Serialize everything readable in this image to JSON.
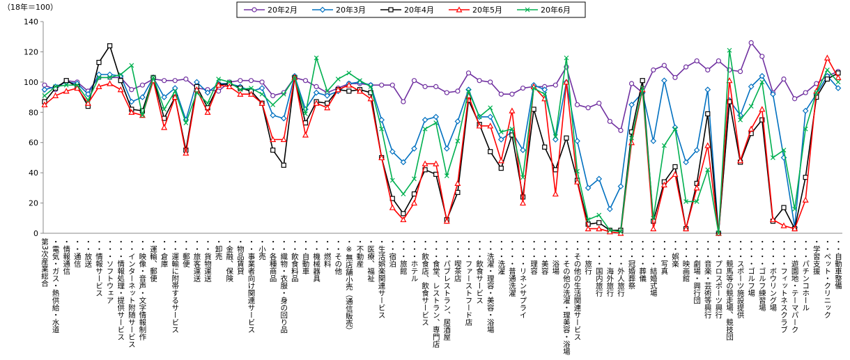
{
  "chart_data": {
    "type": "line",
    "y_label": "（18年＝100）",
    "categories": [
      "第3次産業総合",
      "・電気・ガス・熱供給・水道",
      "・情報通信",
      "・・通信",
      "・・放送",
      "・・情報サービス",
      "・・・ソフトウェア",
      "・・・情報処理・提供サービス",
      "・・インターネット附随サービス",
      "・・映像・音声・文字情報制作",
      "・運輸、郵便",
      "・・倉庫",
      "・・運輸に附帯するサービス",
      "・・郵便",
      "・・旅客運送",
      "・・貨物運送",
      "・卸売",
      "・金融、保険",
      "・物品賃貸",
      "・・事業者向け関連サービス",
      "・小売",
      "・・各種商品",
      "・・織物・衣服・身の回り品",
      "・・飲食料品",
      "・・自動車",
      "・・機械器具",
      "・・燃料",
      "・・その他",
      "・※無店舗小売（通信販売）",
      "・不動産",
      "・医療、福祉",
      "・生活娯楽関連サービス",
      "・・宿泊",
      "・・・旅館",
      "・・・ホテル",
      "・・飲食店、飲食サービス",
      "・・・食堂、レストラン、専門店",
      "・・・パブレストラン、居酒屋",
      "・・・喫茶店",
      "・・・ファーストフード店",
      "・・・飲食サービス",
      "・・洗濯・理容・美容・浴場",
      "・・・洗濯",
      "・・・・普通洗濯",
      "・・・・リネンサプライ",
      "・・・理容",
      "・・・美容",
      "・・・浴場",
      "・・・その他の洗濯・理美容・浴場",
      "・・その他の生活関連サービス",
      "・・・旅行",
      "・・・・国内旅行",
      "・・・・海外旅行",
      "・・・・外人旅行",
      "・・・冠婚葬祭",
      "・・・・葬儀",
      "・・・・結婚式場",
      "・・・写真",
      "・・娯楽",
      "・・・映画館",
      "・・・劇場・興行団",
      "・・・音楽・芸術等興行",
      "・・・プロスポーツ興行",
      "・・・競馬等の競走場、競技団",
      "・・・スポーツ施設提供",
      "・・・・ゴルフ場",
      "・・・・ゴルフ練習場",
      "・・・・ボウリング場",
      "・・・・フィットネスクラブ",
      "・・・遊園地・テーマパーク",
      "・・・パチンコホール",
      "・学習支援",
      "・・ペット・クリニック",
      "・・自動車整備"
    ],
    "series": [
      {
        "name": "20年2月",
        "color": "#7030a0",
        "marker": "circle",
        "values": [
          98,
          95,
          101,
          100,
          94,
          103,
          103,
          103,
          95,
          98,
          102,
          101,
          101,
          102,
          96,
          95,
          94,
          100,
          101,
          101,
          100,
          91,
          93,
          103,
          101,
          97,
          93,
          96,
          99,
          99,
          98,
          98,
          98,
          87,
          101,
          97,
          97,
          93,
          94,
          106,
          101,
          100,
          92,
          92,
          96,
          97,
          97,
          98,
          110,
          85,
          83,
          86,
          74,
          68,
          99,
          93,
          108,
          111,
          103,
          110,
          114,
          108,
          114,
          108,
          107,
          126,
          117,
          93,
          102,
          89,
          93,
          99,
          104,
          107
        ]
      },
      {
        "name": "20年3月",
        "color": "#0070c0",
        "marker": "diamond",
        "values": [
          95,
          97,
          100,
          99,
          92,
          105,
          105,
          104,
          87,
          90,
          103,
          90,
          96,
          75,
          100,
          93,
          99,
          99,
          97,
          94,
          96,
          78,
          76,
          104,
          82,
          93,
          91,
          94,
          99,
          100,
          98,
          75,
          54,
          47,
          56,
          75,
          77,
          56,
          74,
          95,
          77,
          77,
          62,
          67,
          55,
          98,
          95,
          62,
          100,
          61,
          30,
          36,
          16,
          31,
          85,
          93,
          61,
          101,
          70,
          47,
          55,
          95,
          0,
          88,
          78,
          97,
          104,
          92,
          50,
          4,
          81,
          92,
          104,
          96
        ]
      },
      {
        "name": "20年4月",
        "color": "#000000",
        "marker": "square",
        "values": [
          87,
          96,
          101,
          97,
          84,
          113,
          124,
          101,
          82,
          81,
          103,
          76,
          90,
          55,
          97,
          83,
          98,
          99,
          96,
          94,
          86,
          55,
          45,
          103,
          73,
          87,
          86,
          95,
          94,
          95,
          93,
          50,
          23,
          13,
          26,
          42,
          39,
          9,
          27,
          88,
          72,
          54,
          43,
          65,
          24,
          82,
          57,
          42,
          63,
          35,
          6,
          7,
          2,
          2,
          67,
          101,
          8,
          34,
          44,
          3,
          33,
          79,
          0,
          87,
          47,
          66,
          75,
          8,
          17,
          3,
          37,
          90,
          102,
          106
        ]
      },
      {
        "name": "20年5月",
        "color": "#ff0000",
        "marker": "triangle",
        "values": [
          85,
          91,
          94,
          96,
          86,
          97,
          99,
          95,
          80,
          78,
          101,
          70,
          90,
          53,
          95,
          80,
          98,
          97,
          92,
          92,
          86,
          62,
          62,
          103,
          65,
          86,
          83,
          95,
          98,
          94,
          89,
          50,
          17,
          9,
          20,
          46,
          46,
          8,
          33,
          91,
          71,
          71,
          48,
          81,
          20,
          97,
          89,
          26,
          100,
          34,
          3,
          3,
          1,
          0,
          60,
          95,
          3,
          32,
          39,
          3,
          30,
          58,
          0,
          101,
          48,
          69,
          82,
          9,
          5,
          3,
          22,
          94,
          116,
          103
        ]
      },
      {
        "name": "20年6月",
        "color": "#00b050",
        "marker": "x",
        "values": [
          91,
          97,
          98,
          98,
          88,
          103,
          103,
          105,
          111,
          78,
          103,
          82,
          94,
          73,
          93,
          86,
          102,
          100,
          95,
          96,
          92,
          85,
          92,
          103,
          79,
          116,
          94,
          102,
          106,
          101,
          97,
          69,
          35,
          26,
          36,
          69,
          73,
          38,
          61,
          94,
          77,
          83,
          67,
          69,
          37,
          96,
          92,
          64,
          116,
          41,
          9,
          12,
          2,
          1,
          63,
          96,
          10,
          58,
          69,
          21,
          21,
          42,
          0,
          121,
          75,
          84,
          100,
          50,
          55,
          16,
          69,
          93,
          108,
          100
        ]
      }
    ],
    "ylim": [
      0,
      140
    ],
    "yticks": [
      0,
      20,
      40,
      60,
      80,
      100,
      120,
      140
    ]
  }
}
